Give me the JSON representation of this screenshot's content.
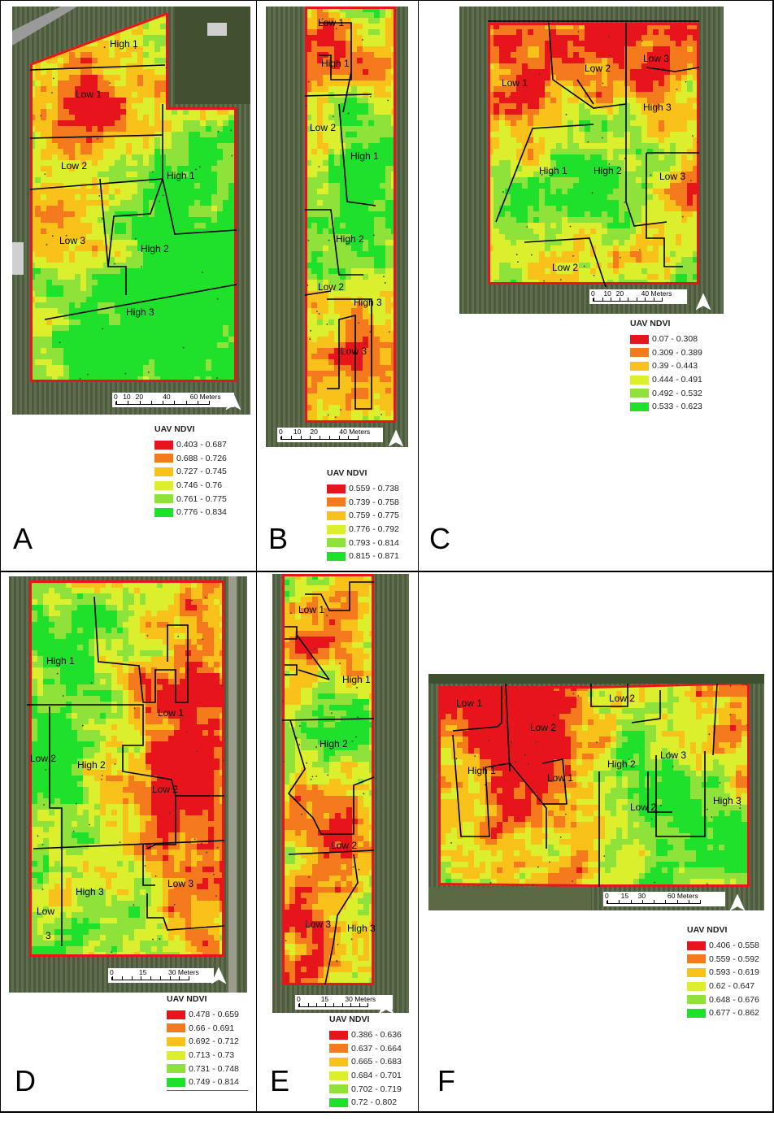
{
  "colors": {
    "red": "#e8141c",
    "orange": "#f57a1e",
    "amber": "#f9c21a",
    "yellow": "#dcef2c",
    "lightgreen": "#8ee23a",
    "green": "#1fe02b"
  },
  "panels": [
    {
      "letter": "A",
      "zones": [
        "High 1",
        "Low 1",
        "Low 2",
        "High 1",
        "Low 3",
        "High 2",
        "High 3"
      ],
      "scale_labels": [
        "0",
        "10",
        "20",
        "40",
        "60 Meters"
      ],
      "legend_title": "UAV NDVI",
      "legend": [
        "0.403 - 0.687",
        "0.688 - 0.726",
        "0.727 - 0.745",
        "0.746 - 0.76",
        "0.761 - 0.775",
        "0.776 - 0.834"
      ]
    },
    {
      "letter": "B",
      "zones": [
        "Low 1",
        "High 1",
        "Low 2",
        "High 1",
        "High 2",
        "Low 2",
        "High 3",
        "Low 3"
      ],
      "scale_labels": [
        "0",
        "10",
        "20",
        "40 Meters"
      ],
      "legend_title": "UAV NDVI",
      "legend": [
        "0.559 - 0.738",
        "0.739 - 0.758",
        "0.759 - 0.775",
        "0.776 - 0.792",
        "0.793 - 0.814",
        "0.815 - 0.871"
      ]
    },
    {
      "letter": "C",
      "zones": [
        "Low 1",
        "Low 2",
        "Low 3",
        "High 3",
        "High 1",
        "High 2",
        "Low 3",
        "Low 2"
      ],
      "scale_labels": [
        "0",
        "10",
        "20",
        "40 Meters"
      ],
      "legend_title": "UAV NDVI",
      "legend": [
        "0.07 - 0.308",
        "0.309 - 0.389",
        "0.39 - 0.443",
        "0.444 - 0.491",
        "0.492 - 0.532",
        "0.533 - 0.623"
      ]
    },
    {
      "letter": "D",
      "zones": [
        "High 1",
        "Low 1",
        "Low 2",
        "High 2",
        "Low 2",
        "High 3",
        "Low 3",
        "Low",
        "3"
      ],
      "scale_labels": [
        "0",
        "15",
        "30 Meters"
      ],
      "legend_title": "UAV NDVI",
      "legend": [
        "0.478 - 0.659",
        "0.66 - 0.691",
        "0.692 - 0.712",
        "0.713 - 0.73",
        "0.731 - 0.748",
        "0.749 - 0.814"
      ]
    },
    {
      "letter": "E",
      "zones": [
        "Low 1",
        "High 1",
        "High 2",
        "Low 2",
        "Low 3",
        "High 3"
      ],
      "scale_labels": [
        "0",
        "15",
        "30 Meters"
      ],
      "legend_title": "UAV NDVI",
      "legend": [
        "0.386 - 0.636",
        "0.637 - 0.664",
        "0.665 - 0.683",
        "0.684 - 0.701",
        "0.702 - 0.719",
        "0.72 - 0.802"
      ]
    },
    {
      "letter": "F",
      "zones": [
        "Low 1",
        "Low 2",
        "Low 2",
        "High 1",
        "Low 1",
        "High 2",
        "Low 3",
        "Low 2",
        "High 3"
      ],
      "scale_labels": [
        "0",
        "15",
        "30",
        "60 Meters"
      ],
      "legend_title": "UAV NDVI",
      "legend": [
        "0.406 - 0.558",
        "0.559 - 0.592",
        "0.593 - 0.619",
        "0.62 - 0.647",
        "0.648 - 0.676",
        "0.677 - 0.862"
      ]
    }
  ]
}
